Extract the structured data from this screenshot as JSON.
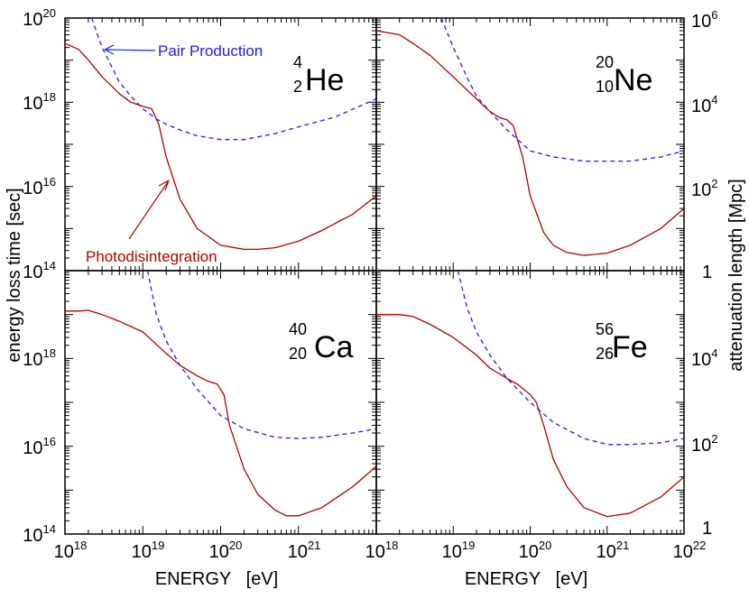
{
  "colors": {
    "pair_production": "#1a1aff",
    "photodisintegration": "#b00000",
    "axes": "#000000"
  },
  "labels": {
    "xlabel": "ENERGY   [eV]",
    "ylabel_left": "energy loss time  [sec]",
    "ylabel_right": "attenuation length  [Mpc]",
    "pair_label": "Pair Production",
    "photo_label": "Photodisintegration"
  },
  "ticks": {
    "x_bottom_left": [
      {
        "b": "10",
        "e": "18"
      },
      {
        "b": "10",
        "e": "19"
      },
      {
        "b": "10",
        "e": "20"
      },
      {
        "b": "10",
        "e": "21"
      }
    ],
    "x_bottom_right": [
      {
        "b": "10",
        "e": "18"
      },
      {
        "b": "10",
        "e": "19"
      },
      {
        "b": "10",
        "e": "20"
      },
      {
        "b": "10",
        "e": "21"
      },
      {
        "b": "10",
        "e": "22"
      }
    ],
    "y_left_top": [
      {
        "b": "10",
        "e": "20"
      },
      {
        "b": "10",
        "e": "18"
      },
      {
        "b": "10",
        "e": "16"
      },
      {
        "b": "10",
        "e": "14"
      }
    ],
    "y_left_bottom": [
      {
        "b": "10",
        "e": "18"
      },
      {
        "b": "10",
        "e": "16"
      },
      {
        "b": "10",
        "e": "14"
      }
    ],
    "y_right_top": [
      {
        "b": "10",
        "e": "6"
      },
      {
        "b": "10",
        "e": "4"
      },
      {
        "b": "10",
        "e": "2"
      },
      {
        "b": "1",
        "e": ""
      }
    ],
    "y_right_bottom": [
      {
        "b": "10",
        "e": "4"
      },
      {
        "b": "10",
        "e": "2"
      },
      {
        "b": "1",
        "e": ""
      }
    ]
  },
  "chart_data": [
    {
      "type": "line",
      "xscale": "log",
      "yscale": "log",
      "xlim": [
        1e+18,
        1e+22
      ],
      "ylim": [
        100000000000000.0,
        1e+20
      ],
      "nucleus": {
        "mass": "4",
        "charge": "2",
        "symbol": "He"
      },
      "series": [
        {
          "name": "Pair Production",
          "style": "dashed",
          "x": [
            2.2e+18,
            3e+18,
            5e+18,
            7e+18,
            1e+19,
            1.5e+19,
            2e+19,
            3e+19,
            5e+19,
            1e+20,
            2e+20,
            5e+20,
            1e+21,
            3e+21,
            1e+22
          ],
          "y": [
            1e+20,
            2e+19,
            3e+18,
            1.4e+18,
            7e+17,
            4e+17,
            3e+17,
            2.2e+17,
            1.6e+17,
            1.3e+17,
            1.3e+17,
            1.8e+17,
            2.6e+17,
            4.5e+17,
            1.2e+18
          ]
        },
        {
          "name": "Photodisintegration",
          "style": "solid",
          "x": [
            1e+18,
            1.5e+18,
            2e+18,
            3e+18,
            5e+18,
            7e+18,
            1e+19,
            1.3e+19,
            1.6e+19,
            2e+19,
            3e+19,
            5e+19,
            1e+20,
            2e+20,
            3e+20,
            5e+20,
            1e+21,
            2e+21,
            5e+21,
            1e+22
          ],
          "y": [
            2.5e+19,
            1.8e+19,
            1e+19,
            4e+18,
            1.6e+18,
            1e+18,
            8e+17,
            7e+17,
            3e+17,
            5e+16,
            5000000000000000.0,
            1000000000000000.0,
            400000000000000.0,
            320000000000000.0,
            320000000000000.0,
            350000000000000.0,
            500000000000000.0,
            900000000000000.0,
            2200000000000000.0,
            6000000000000000.0
          ]
        }
      ]
    },
    {
      "type": "line",
      "xscale": "log",
      "yscale": "log",
      "xlim": [
        1e+18,
        1e+22
      ],
      "ylim": [
        100000000000000.0,
        1e+20
      ],
      "nucleus": {
        "mass": "20",
        "charge": "10",
        "symbol": "Ne"
      },
      "series": [
        {
          "name": "Pair Production",
          "style": "dashed",
          "x": [
            7e+18,
            1e+19,
            1.5e+19,
            2e+19,
            3e+19,
            5e+19,
            1e+20,
            2e+20,
            5e+20,
            1e+21,
            2e+21,
            5e+21,
            1e+22
          ],
          "y": [
            1e+20,
            2e+19,
            4e+18,
            1.4e+18,
            6e+17,
            2.2e+17,
            7e+16,
            5e+16,
            4e+16,
            4e+16,
            4e+16,
            5e+16,
            7e+16
          ]
        },
        {
          "name": "Photodisintegration",
          "style": "solid",
          "x": [
            1e+18,
            2e+18,
            3e+18,
            5e+18,
            1e+19,
            2e+19,
            3e+19,
            4e+19,
            5e+19,
            6e+19,
            8e+19,
            1e+20,
            1.5e+20,
            2e+20,
            3e+20,
            5e+20,
            1e+21,
            2e+21,
            5e+21,
            1e+22
          ],
          "y": [
            5e+19,
            4e+19,
            2.5e+19,
            1.3e+19,
            4e+18,
            1.2e+18,
            6e+17,
            4.3e+17,
            3.8e+17,
            2.8e+17,
            5e+16,
            6000000000000000.0,
            800000000000000.0,
            400000000000000.0,
            270000000000000.0,
            230000000000000.0,
            260000000000000.0,
            400000000000000.0,
            1000000000000000.0,
            3000000000000000.0
          ]
        }
      ]
    },
    {
      "type": "line",
      "xscale": "log",
      "yscale": "log",
      "xlim": [
        1e+18,
        1e+22
      ],
      "ylim": [
        100000000000000.0,
        1e+20
      ],
      "nucleus": {
        "mass": "40",
        "charge": "20",
        "symbol": "Ca"
      },
      "series": [
        {
          "name": "Pair Production",
          "style": "dashed",
          "x": [
            1.15e+19,
            1.5e+19,
            2e+19,
            3e+19,
            5e+19,
            1e+20,
            2e+20,
            5e+20,
            1e+21,
            2e+21,
            5e+21,
            1e+22
          ],
          "y": [
            1e+20,
            1e+19,
            2.5e+18,
            7e+17,
            2e+17,
            5e+16,
            2.5e+16,
            1.6e+16,
            1.5e+16,
            1.6e+16,
            2e+16,
            2.5e+16
          ]
        },
        {
          "name": "Photodisintegration",
          "style": "solid",
          "x": [
            1e+18,
            1.5e+18,
            2e+18,
            3e+18,
            5e+18,
            1e+19,
            2e+19,
            3e+19,
            5e+19,
            7e+19,
            9e+19,
            1.1e+20,
            1.3e+20,
            2e+20,
            3e+20,
            5e+20,
            7e+20,
            1e+21,
            2e+21,
            5e+21,
            1e+22
          ],
          "y": [
            1.2e+19,
            1.2e+19,
            1.25e+19,
            1e+19,
            7e+18,
            4e+18,
            1.3e+18,
            7e+17,
            4e+17,
            3e+17,
            2.6e+17,
            1.5e+17,
            3e+16,
            3000000000000000.0,
            800000000000000.0,
            350000000000000.0,
            260000000000000.0,
            260000000000000.0,
            400000000000000.0,
            1200000000000000.0,
            3500000000000000.0
          ]
        }
      ]
    },
    {
      "type": "line",
      "xscale": "log",
      "yscale": "log",
      "xlim": [
        1e+18,
        1e+22
      ],
      "ylim": [
        100000000000000.0,
        1e+20
      ],
      "nucleus": {
        "mass": "56",
        "charge": "26",
        "symbol": "Fe"
      },
      "series": [
        {
          "name": "Pair Production",
          "style": "dashed",
          "x": [
            1.15e+19,
            1.5e+19,
            2e+19,
            3e+19,
            5e+19,
            1e+20,
            2e+20,
            5e+20,
            1e+21,
            2e+21,
            5e+21,
            1e+22
          ],
          "y": [
            1e+20,
            1.5e+19,
            4e+18,
            1.2e+18,
            3.5e+17,
            1e+17,
            3.5e+16,
            1.5e+16,
            1.1e+16,
            1.1e+16,
            1.2e+16,
            1.5e+16
          ]
        },
        {
          "name": "Photodisintegration",
          "style": "solid",
          "x": [
            1e+18,
            1.5e+18,
            2e+18,
            3e+18,
            5e+18,
            1e+19,
            2e+19,
            3e+19,
            5e+19,
            7e+19,
            1e+20,
            1.2e+20,
            1.5e+20,
            2e+20,
            3e+20,
            5e+20,
            1e+21,
            2e+21,
            5e+21,
            1e+22
          ],
          "y": [
            1e+19,
            1e+19,
            1e+19,
            9e+18,
            6e+18,
            3e+18,
            1.2e+18,
            6e+17,
            3.5e+17,
            2.5e+17,
            1.5e+17,
            1e+17,
            3e+16,
            5000000000000000.0,
            1200000000000000.0,
            400000000000000.0,
            250000000000000.0,
            300000000000000.0,
            700000000000000.0,
            2000000000000000.0
          ]
        }
      ]
    }
  ]
}
